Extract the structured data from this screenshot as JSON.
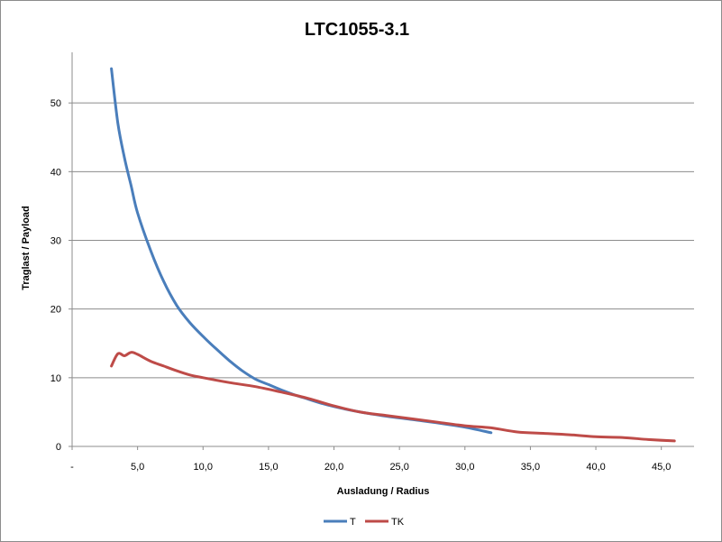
{
  "chart_data": {
    "type": "line",
    "title": "LTC1055-3.1",
    "xlabel": "Ausladung / Radius",
    "ylabel": "Traglast / Payload",
    "xlim": [
      0,
      47.5
    ],
    "ylim": [
      0,
      60
    ],
    "x_ticks": [
      {
        "v": 0,
        "label": "-"
      },
      {
        "v": 5,
        "label": "5,0"
      },
      {
        "v": 10,
        "label": "10,0"
      },
      {
        "v": 15,
        "label": "15,0"
      },
      {
        "v": 20,
        "label": "20,0"
      },
      {
        "v": 25,
        "label": "25,0"
      },
      {
        "v": 30,
        "label": "30,0"
      },
      {
        "v": 35,
        "label": "35,0"
      },
      {
        "v": 40,
        "label": "40,0"
      },
      {
        "v": 45,
        "label": "45,0"
      }
    ],
    "y_ticks": [
      {
        "v": 0,
        "label": "0"
      },
      {
        "v": 10,
        "label": "10"
      },
      {
        "v": 20,
        "label": "20"
      },
      {
        "v": 30,
        "label": "30"
      },
      {
        "v": 40,
        "label": "40"
      },
      {
        "v": 50,
        "label": "50"
      }
    ],
    "grid": "horizontal",
    "legend_position": "bottom",
    "series": [
      {
        "name": "T",
        "color": "#4a7ebb",
        "points": [
          [
            3.0,
            55.0
          ],
          [
            3.5,
            47.0
          ],
          [
            4.0,
            42.0
          ],
          [
            4.5,
            38.0
          ],
          [
            5.0,
            34.0
          ],
          [
            6.0,
            28.5
          ],
          [
            7.0,
            24.0
          ],
          [
            8.0,
            20.5
          ],
          [
            9.0,
            18.0
          ],
          [
            10.0,
            16.0
          ],
          [
            11.0,
            14.2
          ],
          [
            12.0,
            12.5
          ],
          [
            13.0,
            11.0
          ],
          [
            14.0,
            9.8
          ],
          [
            15.0,
            9.0
          ],
          [
            16.0,
            8.2
          ],
          [
            17.0,
            7.5
          ],
          [
            18.0,
            6.9
          ],
          [
            19.0,
            6.3
          ],
          [
            20.0,
            5.8
          ],
          [
            22.0,
            5.0
          ],
          [
            24.0,
            4.4
          ],
          [
            26.0,
            3.9
          ],
          [
            28.0,
            3.4
          ],
          [
            30.0,
            2.8
          ],
          [
            32.0,
            2.0
          ]
        ]
      },
      {
        "name": "TK",
        "color": "#be4b48",
        "points": [
          [
            3.0,
            11.7
          ],
          [
            3.5,
            13.5
          ],
          [
            4.0,
            13.2
          ],
          [
            4.5,
            13.7
          ],
          [
            5.0,
            13.4
          ],
          [
            6.0,
            12.4
          ],
          [
            7.0,
            11.7
          ],
          [
            8.0,
            11.0
          ],
          [
            9.0,
            10.4
          ],
          [
            10.0,
            10.0
          ],
          [
            12.0,
            9.3
          ],
          [
            14.0,
            8.7
          ],
          [
            16.0,
            7.9
          ],
          [
            18.0,
            7.0
          ],
          [
            20.0,
            5.9
          ],
          [
            22.0,
            5.0
          ],
          [
            24.0,
            4.5
          ],
          [
            26.0,
            4.0
          ],
          [
            28.0,
            3.5
          ],
          [
            30.0,
            3.0
          ],
          [
            32.0,
            2.7
          ],
          [
            34.0,
            2.1
          ],
          [
            36.0,
            1.9
          ],
          [
            38.0,
            1.7
          ],
          [
            40.0,
            1.4
          ],
          [
            42.0,
            1.3
          ],
          [
            44.0,
            1.0
          ],
          [
            46.0,
            0.8
          ]
        ]
      }
    ]
  }
}
